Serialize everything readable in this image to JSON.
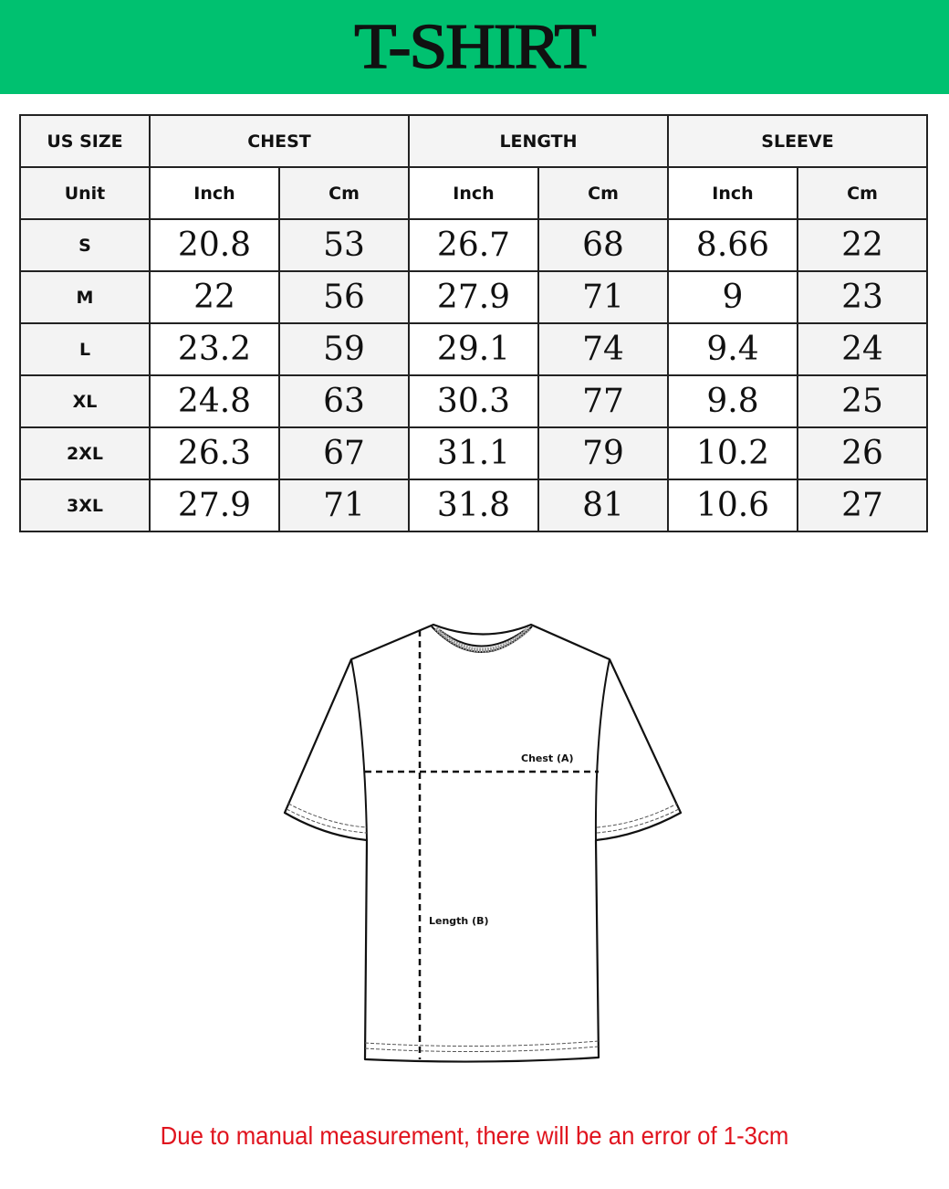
{
  "title": "T-SHIRT",
  "colors": {
    "banner": "#00c170",
    "note": "#e0141e"
  },
  "table": {
    "group_headers": [
      "US SIZE",
      "CHEST",
      "LENGTH",
      "SLEEVE"
    ],
    "unit_row": [
      "Unit",
      "Inch",
      "Cm",
      "Inch",
      "Cm",
      "Inch",
      "Cm"
    ],
    "rows": [
      [
        "S",
        "20.8",
        "53",
        "26.7",
        "68",
        "8.66",
        "22"
      ],
      [
        "M",
        "22",
        "56",
        "27.9",
        "71",
        "9",
        "23"
      ],
      [
        "L",
        "23.2",
        "59",
        "29.1",
        "74",
        "9.4",
        "24"
      ],
      [
        "XL",
        "24.8",
        "63",
        "30.3",
        "77",
        "9.8",
        "25"
      ],
      [
        "2XL",
        "26.3",
        "67",
        "31.1",
        "79",
        "10.2",
        "26"
      ],
      [
        "3XL",
        "27.9",
        "71",
        "31.8",
        "81",
        "10.6",
        "27"
      ]
    ]
  },
  "diagram": {
    "chest_label": "Chest (A)",
    "length_label": "Length (B)"
  },
  "note": "Due to manual measurement, there will be an error of 1-3cm"
}
